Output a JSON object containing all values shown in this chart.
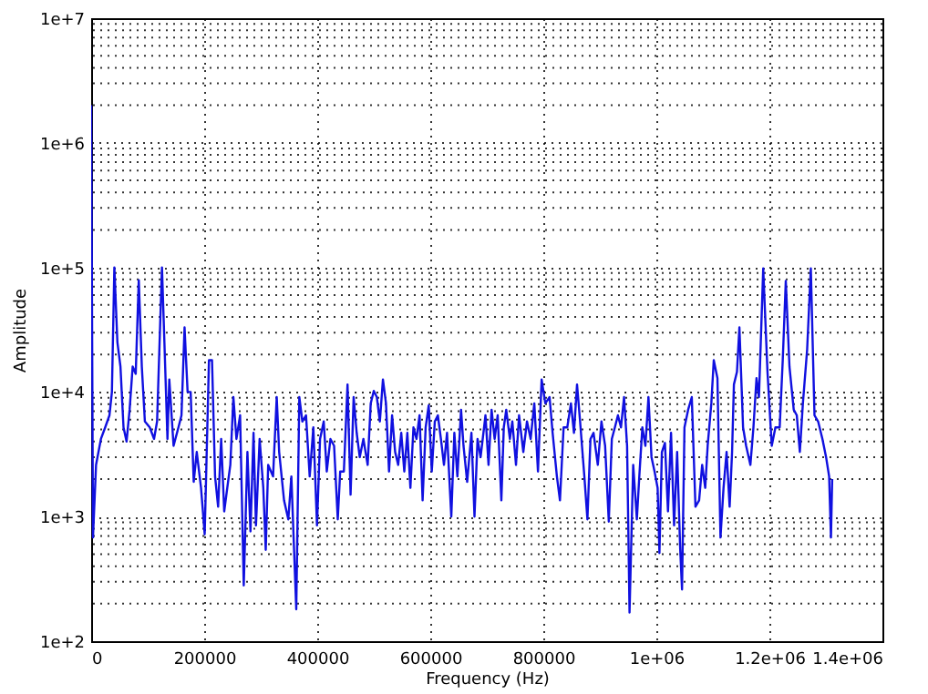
{
  "chart_data": {
    "type": "line",
    "xlabel": "Frequency (Hz)",
    "ylabel": "Amplitude",
    "log": "y",
    "grid": true,
    "marker": "none",
    "line_style": "solid",
    "xlim": [
      0,
      1400000
    ],
    "xticks": [
      0,
      200000,
      400000,
      600000,
      800000,
      {
        "value": 1000000,
        "label": "1e+06"
      },
      {
        "value": 1200000,
        "label": "1.2e+06"
      },
      {
        "value": 1400000,
        "label": "1.4e+06"
      }
    ],
    "ylim": [
      100,
      10000000
    ],
    "yticks": [
      {
        "value": 100,
        "label": "1e+2"
      },
      {
        "value": 1000,
        "label": "1e+3"
      },
      {
        "value": 10000,
        "label": "1e+4"
      },
      {
        "value": 100000,
        "label": "1e+5"
      },
      {
        "value": 1000000,
        "label": "1e+6"
      },
      {
        "value": 10000000,
        "label": "1e+7"
      }
    ],
    "x": [
      0,
      3240,
      8640,
      17280,
      24840,
      32400,
      36720,
      41040,
      46440,
      51840,
      57240,
      62640,
      68040,
      73440,
      78840,
      84240,
      89640,
      95040,
      103680,
      111240,
      116640,
      125280,
      129600,
      135000,
      138240,
      145800,
      154440,
      159840,
      165240,
      170640,
      176040,
      181440,
      186840,
      194400,
      200880,
      208440,
      213840,
      219240,
      224640,
      230040,
      235440,
      240840,
      246240,
      251640,
      257040,
      263520,
      270000,
      276480,
      281880,
      287280,
      291600,
      298080,
      304560,
      308880,
      313200,
      321840,
      328320,
      332640,
      341280,
      348840,
      354240,
      362880,
      368280,
      373680,
      380160,
      386640,
      393120,
      399600,
      405000,
      411480,
      416880,
      423360,
      429840,
      436320,
      440640,
      447120,
      453600,
      459000,
      464400,
      469800,
      475200,
      481680,
      489240,
      494640,
      500040,
      505440,
      510840,
      516240,
      521640,
      527040,
      532440,
      537840,
      543240,
      548640,
      554040,
      559440,
      564840,
      570240,
      575640,
      581040,
      586440,
      591840,
      597240,
      602640,
      608040,
      613440,
      618840,
      624240,
      629640,
      637200,
      642600,
      648000,
      654480,
      658800,
      665280,
      672840,
      678240,
      683640,
      689040,
      697680,
      703080,
      708480,
      713880,
      719280,
      725760,
      730080,
      734400,
      740880,
      745200,
      751680,
      757080,
      764640,
      771120,
      777600,
      784080,
      790560,
      797040,
      803520,
      811080,
      816480,
      824040,
      829440,
      835920,
      842400,
      848880,
      854280,
      859680,
      865080,
      872640,
      878040,
      883440,
      888840,
      896400,
      902880,
      909360,
      915840,
      921240,
      926640,
      932040,
      937440,
      942840,
      948240,
      952560,
      959040,
      965520,
      969840,
      975240,
      980640,
      986040,
      991440,
      996840,
      1002240,
      1005480,
      1009800,
      1015200,
      1020600,
      1026000,
      1031400,
      1036800,
      1042200,
      1045440,
      1049760,
      1056240,
      1062720,
      1069200,
      1075680,
      1081080,
      1086480,
      1090800,
      1097280,
      1101600,
      1108080,
      1113480,
      1118880,
      1124280,
      1129680,
      1134000,
      1137240,
      1142640,
      1146960,
      1153440,
      1158840,
      1166400,
      1171800,
      1177200,
      1181520,
      1189080,
      1196640,
      1204200,
      1210680,
      1218240,
      1223640,
      1229040,
      1235520,
      1243080,
      1248480,
      1253880,
      1259280,
      1266840,
      1273320,
      1279800,
      1286280,
      1293840,
      1300320,
      1305720,
      1308960,
      1311120
    ],
    "series": [
      {
        "color": "#1010e0",
        "values": [
          2000000,
          680,
          2600,
          4200,
          5200,
          6500,
          10000,
          100000,
          25000,
          16000,
          5200,
          4000,
          7200,
          16000,
          14000,
          79000,
          16000,
          5800,
          5200,
          4200,
          5800,
          100000,
          25000,
          4200,
          12600,
          3700,
          5200,
          6500,
          33000,
          10000,
          10000,
          1900,
          3300,
          1700,
          720,
          18000,
          18000,
          2100,
          1200,
          4200,
          1100,
          1700,
          2600,
          9100,
          4200,
          6500,
          280,
          3300,
          760,
          4700,
          850,
          4200,
          1700,
          540,
          2600,
          2100,
          9100,
          3300,
          1350,
          950,
          2100,
          180,
          9100,
          5800,
          6500,
          2100,
          5200,
          850,
          4200,
          5800,
          2300,
          4200,
          3700,
          950,
          2300,
          2300,
          11500,
          1500,
          9100,
          4700,
          3000,
          4200,
          2600,
          8100,
          10200,
          9100,
          5800,
          12600,
          8100,
          2300,
          6500,
          3300,
          2600,
          4700,
          2300,
          4700,
          1700,
          5200,
          4200,
          6500,
          1350,
          5200,
          7800,
          2300,
          5800,
          6500,
          4200,
          2600,
          4700,
          1000,
          4700,
          2100,
          7200,
          3700,
          1900,
          4700,
          1000,
          4200,
          3000,
          6500,
          2600,
          7200,
          4200,
          6500,
          1350,
          5200,
          7200,
          4200,
          5800,
          2600,
          6500,
          3300,
          5800,
          4200,
          8100,
          2300,
          12600,
          8100,
          9100,
          4700,
          2100,
          1350,
          5200,
          5200,
          8100,
          4700,
          11500,
          5800,
          2100,
          950,
          4200,
          4700,
          2600,
          5800,
          3700,
          910,
          4200,
          5200,
          6500,
          5200,
          9100,
          3700,
          170,
          2600,
          950,
          2100,
          5200,
          3700,
          9100,
          3000,
          2300,
          1700,
          510,
          3300,
          3900,
          1100,
          4700,
          850,
          3300,
          550,
          260,
          5200,
          7200,
          9100,
          1200,
          1350,
          2600,
          1700,
          3700,
          8100,
          18000,
          12900,
          680,
          1700,
          3300,
          1200,
          3300,
          11500,
          14500,
          33000,
          5200,
          3700,
          2600,
          5200,
          12900,
          9100,
          98000,
          14500,
          3700,
          5200,
          5200,
          18000,
          78000,
          16000,
          7200,
          6500,
          3300,
          8100,
          22000,
          98000,
          6500,
          5800,
          4200,
          3000,
          2100,
          680,
          2000
        ]
      }
    ]
  }
}
